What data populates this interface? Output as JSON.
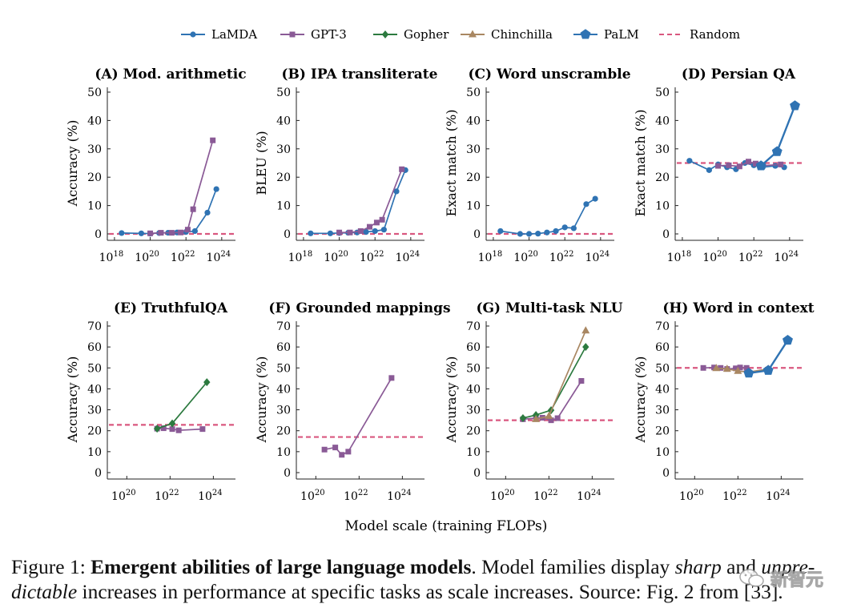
{
  "legend": [
    {
      "name": "LaMDA",
      "color": "#2f73b3",
      "marker": "circle",
      "dash": false
    },
    {
      "name": "GPT-3",
      "color": "#8a5a96",
      "marker": "square",
      "dash": false
    },
    {
      "name": "Gopher",
      "color": "#2c7a3f",
      "marker": "diamond",
      "dash": false
    },
    {
      "name": "Chinchilla",
      "color": "#a98762",
      "marker": "triangle",
      "dash": false
    },
    {
      "name": "PaLM",
      "color": "#2f73b3",
      "marker": "pentagon",
      "dash": false
    },
    {
      "name": "Random",
      "color": "#d9577f",
      "marker": "none",
      "dash": true
    }
  ],
  "xlabel": "Model scale (training FLOPs)",
  "chart_data": [
    {
      "type": "line",
      "title": "(A) Mod. arithmetic",
      "ylabel": "Accuracy (%)",
      "ylim": [
        0,
        50
      ],
      "yticks": [
        0,
        10,
        20,
        30,
        40,
        50
      ],
      "xlim": [
        17.6,
        24.5
      ],
      "xticks": [
        18,
        20,
        22,
        24
      ],
      "random": 0,
      "series": [
        {
          "name": "LaMDA",
          "x": [
            18.4,
            19.5,
            20.0,
            20.5,
            21.0,
            21.5,
            22.0,
            22.5,
            23.2,
            23.7
          ],
          "y": [
            0.3,
            0.2,
            0.1,
            0.3,
            0.4,
            0.5,
            0.7,
            1.0,
            7.5,
            15.8
          ]
        },
        {
          "name": "GPT-3",
          "x": [
            20.0,
            20.6,
            21.2,
            21.7,
            22.1,
            22.4,
            23.5
          ],
          "y": [
            0.2,
            0.4,
            0.4,
            0.5,
            1.5,
            8.7,
            33.0
          ]
        }
      ]
    },
    {
      "type": "line",
      "title": "(B) IPA transliterate",
      "ylabel": "BLEU (%)",
      "ylim": [
        0,
        50
      ],
      "yticks": [
        0,
        10,
        20,
        30,
        40,
        50
      ],
      "xlim": [
        17.6,
        24.5
      ],
      "xticks": [
        18,
        20,
        22,
        24
      ],
      "random": 0,
      "series": [
        {
          "name": "LaMDA",
          "x": [
            18.4,
            19.5,
            20.0,
            20.5,
            21.0,
            21.5,
            22.0,
            22.5,
            23.2,
            23.7
          ],
          "y": [
            0.2,
            0.2,
            0.3,
            0.4,
            0.5,
            0.7,
            1.0,
            1.5,
            15.0,
            22.5
          ]
        },
        {
          "name": "GPT-3",
          "x": [
            20.0,
            20.6,
            21.2,
            21.7,
            22.1,
            22.4,
            23.5
          ],
          "y": [
            0.5,
            0.5,
            1.0,
            2.5,
            4.0,
            5.0,
            22.8
          ]
        }
      ]
    },
    {
      "type": "line",
      "title": "(C) Word unscramble",
      "ylabel": "Exact match (%)",
      "ylim": [
        0,
        50
      ],
      "yticks": [
        0,
        10,
        20,
        30,
        40,
        50
      ],
      "xlim": [
        17.6,
        24.5
      ],
      "xticks": [
        18,
        20,
        22,
        24
      ],
      "random": 0,
      "series": [
        {
          "name": "LaMDA",
          "x": [
            18.4,
            19.5,
            20.0,
            20.5,
            21.0,
            21.5,
            22.0,
            22.5,
            23.2,
            23.7
          ],
          "y": [
            1.0,
            0.0,
            0.0,
            0.1,
            0.5,
            1.0,
            2.3,
            2.0,
            10.5,
            12.4
          ]
        }
      ]
    },
    {
      "type": "line",
      "title": "(D) Persian QA",
      "ylabel": "Exact match (%)",
      "ylim": [
        0,
        50
      ],
      "yticks": [
        0,
        10,
        20,
        30,
        40,
        50
      ],
      "xlim": [
        17.6,
        24.5
      ],
      "xticks": [
        18,
        20,
        22,
        24
      ],
      "random": 25,
      "series": [
        {
          "name": "LaMDA",
          "x": [
            18.4,
            19.5,
            20.0,
            20.5,
            21.0,
            21.5,
            22.0,
            22.5,
            23.2,
            23.7
          ],
          "y": [
            25.8,
            22.5,
            24.5,
            23.5,
            22.8,
            25.0,
            24.2,
            23.5,
            24.0,
            23.5
          ]
        },
        {
          "name": "GPT-3",
          "x": [
            20.0,
            20.6,
            21.2,
            21.7,
            22.1,
            22.4,
            23.5
          ],
          "y": [
            24.0,
            24.2,
            23.8,
            25.5,
            24.8,
            24.0,
            24.5
          ]
        },
        {
          "name": "PaLM",
          "x": [
            22.4,
            23.3,
            24.3
          ],
          "y": [
            24.0,
            29.0,
            45.2
          ]
        }
      ]
    },
    {
      "type": "line",
      "title": "(E) TruthfulQA",
      "ylabel": "Accuracy (%)",
      "ylim": [
        0,
        70
      ],
      "yticks": [
        0,
        10,
        20,
        30,
        40,
        50,
        60,
        70
      ],
      "xlim": [
        19.1,
        24.8
      ],
      "xticks": [
        20,
        22,
        24
      ],
      "random": 22.8,
      "series": [
        {
          "name": "GPT-3",
          "x": [
            21.4,
            21.7,
            22.1,
            22.4,
            23.5
          ],
          "y": [
            21.0,
            21.2,
            20.8,
            20.2,
            20.8
          ]
        },
        {
          "name": "Gopher",
          "x": [
            21.4,
            22.1,
            23.7
          ],
          "y": [
            21.0,
            23.5,
            43.2
          ]
        }
      ]
    },
    {
      "type": "line",
      "title": "(F) Grounded mappings",
      "ylabel": "Accuracy (%)",
      "ylim": [
        0,
        70
      ],
      "yticks": [
        0,
        10,
        20,
        30,
        40,
        50,
        60,
        70
      ],
      "xlim": [
        19.1,
        24.8
      ],
      "xticks": [
        20,
        22,
        24
      ],
      "random": 17,
      "series": [
        {
          "name": "GPT-3",
          "x": [
            20.4,
            20.9,
            21.2,
            21.5,
            23.5
          ],
          "y": [
            11.0,
            12.0,
            8.5,
            10.0,
            45.2
          ]
        }
      ]
    },
    {
      "type": "line",
      "title": "(G) Multi-task NLU",
      "ylabel": "Accuracy (%)",
      "ylim": [
        0,
        70
      ],
      "yticks": [
        0,
        10,
        20,
        30,
        40,
        50,
        60,
        70
      ],
      "xlim": [
        19.1,
        24.8
      ],
      "xticks": [
        20,
        22,
        24
      ],
      "random": 25,
      "series": [
        {
          "name": "GPT-3",
          "x": [
            20.8,
            21.4,
            21.7,
            22.1,
            22.4,
            23.5
          ],
          "y": [
            25.5,
            26.0,
            26.2,
            25.0,
            26.0,
            43.8
          ]
        },
        {
          "name": "Gopher",
          "x": [
            20.8,
            21.4,
            22.1,
            23.7
          ],
          "y": [
            26.0,
            27.5,
            29.8,
            60.0
          ]
        },
        {
          "name": "Chinchilla",
          "x": [
            21.4,
            22.0,
            23.7
          ],
          "y": [
            25.5,
            27.0,
            67.8
          ]
        }
      ]
    },
    {
      "type": "line",
      "title": "(H) Word in context",
      "ylabel": "Accuracy (%)",
      "ylim": [
        0,
        70
      ],
      "yticks": [
        0,
        10,
        20,
        30,
        40,
        50,
        60,
        70
      ],
      "xlim": [
        19.1,
        24.8
      ],
      "xticks": [
        20,
        22,
        24
      ],
      "random": 50,
      "series": [
        {
          "name": "GPT-3",
          "x": [
            20.4,
            20.9,
            21.2,
            21.5,
            21.9,
            22.1,
            22.4
          ],
          "y": [
            50.0,
            50.2,
            50.0,
            49.5,
            49.8,
            50.2,
            50.0
          ]
        },
        {
          "name": "Chinchilla",
          "x": [
            21.0,
            21.5,
            22.0,
            22.5,
            23.4
          ],
          "y": [
            49.8,
            49.5,
            48.5,
            48.0,
            49.5
          ]
        },
        {
          "name": "PaLM",
          "x": [
            22.5,
            23.4,
            24.3
          ],
          "y": [
            47.5,
            48.8,
            63.2
          ]
        }
      ]
    }
  ],
  "caption": {
    "prefix": "Figure 1: ",
    "bold": "Emergent abilities of large language models",
    "text1": ". Model families display ",
    "italic1": "sharp",
    "text2": " and ",
    "italic2": "unpre-dictable",
    "text3": " increases in performance at specific tasks as scale increases. Source: Fig. 2 from [33]."
  },
  "watermark": {
    "text": "新智元",
    "icon": "wechat-logo-icon"
  }
}
